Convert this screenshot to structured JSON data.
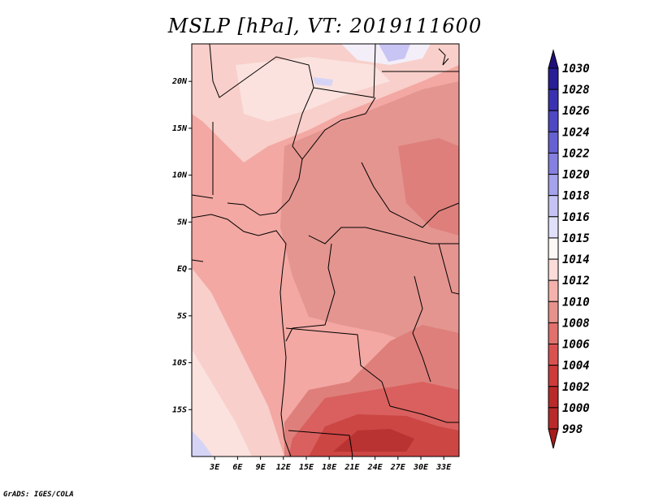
{
  "title": "MSLP [hPa], VT: 2019111600",
  "credit": "GrADS: IGES/COLA",
  "map": {
    "lon_range": [
      0,
      35
    ],
    "lat_range": [
      -20,
      24
    ],
    "lat_ticks": [
      {
        "value": 20,
        "label": "20N"
      },
      {
        "value": 15,
        "label": "15N"
      },
      {
        "value": 10,
        "label": "10N"
      },
      {
        "value": 5,
        "label": "5N"
      },
      {
        "value": 0,
        "label": "EQ"
      },
      {
        "value": -5,
        "label": "5S"
      },
      {
        "value": -10,
        "label": "10S"
      },
      {
        "value": -15,
        "label": "15S"
      }
    ],
    "lon_ticks": [
      {
        "value": 3,
        "label": "3E"
      },
      {
        "value": 6,
        "label": "6E"
      },
      {
        "value": 9,
        "label": "9E"
      },
      {
        "value": 12,
        "label": "12E"
      },
      {
        "value": 15,
        "label": "15E"
      },
      {
        "value": 18,
        "label": "18E"
      },
      {
        "value": 21,
        "label": "21E"
      },
      {
        "value": 24,
        "label": "24E"
      },
      {
        "value": 27,
        "label": "27E"
      },
      {
        "value": 30,
        "label": "30E"
      },
      {
        "value": 33,
        "label": "33E"
      }
    ]
  },
  "colorbar": {
    "levels": [
      {
        "value": "1030",
        "color": "#1e1078"
      },
      {
        "value": "1028",
        "color": "#281e96"
      },
      {
        "value": "1026",
        "color": "#3a32b0"
      },
      {
        "value": "1024",
        "color": "#4e48c4"
      },
      {
        "value": "1022",
        "color": "#6660d2"
      },
      {
        "value": "1020",
        "color": "#8580e0"
      },
      {
        "value": "1018",
        "color": "#a5a2ec"
      },
      {
        "value": "1016",
        "color": "#c5c3f4"
      },
      {
        "value": "1015",
        "color": "#e1e0fa"
      },
      {
        "value": "1014",
        "color": "#fdf7f6"
      },
      {
        "value": "1012",
        "color": "#fbdcd8"
      },
      {
        "value": "1010",
        "color": "#f5b2ac"
      },
      {
        "value": "1008",
        "color": "#e7928d"
      },
      {
        "value": "1006",
        "color": "#e0716d"
      },
      {
        "value": "1004",
        "color": "#d95250"
      },
      {
        "value": "1002",
        "color": "#cd3c3a"
      },
      {
        "value": "1000",
        "color": "#ba2a2a"
      },
      {
        "value": "998",
        "color": "#a81c1c"
      }
    ]
  }
}
